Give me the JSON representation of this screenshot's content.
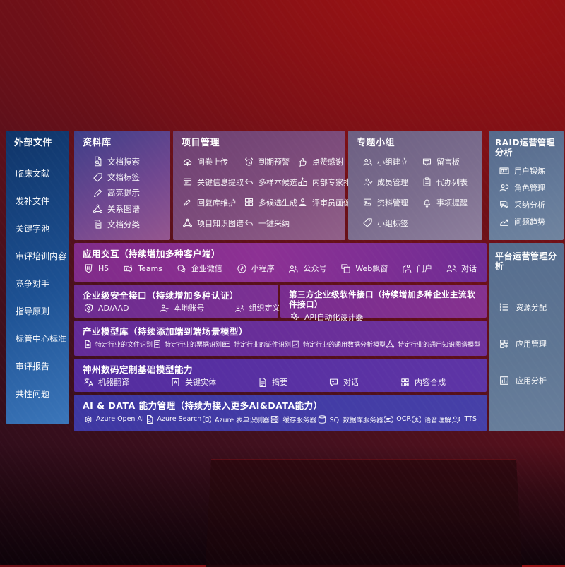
{
  "colors": {
    "background_red": "#7a1015",
    "sidebar_blue": "#1d5193",
    "repository_purple": "#5a4490",
    "project_mauve": "#7c4b7a",
    "group_gray_purple": "#7a6c90",
    "ops_slate": "#5e7494",
    "interaction_magenta": "#862e8f",
    "security_purple": "#712d92",
    "model_violet": "#662e9a",
    "base_violet": "#55309f",
    "aidata_indigo": "#413aa3"
  },
  "sidebar": {
    "title": "外部文件",
    "items": [
      "临床文献",
      "发补文件",
      "关键字池",
      "审评培训内容",
      "竞争对手",
      "指导原则",
      "标管中心标准",
      "审评报告",
      "共性问题"
    ]
  },
  "panels": {
    "repository": {
      "title": "资料库",
      "items": [
        {
          "icon": "doc-search-icon",
          "label": "文档搜索"
        },
        {
          "icon": "tag-icon",
          "label": "文档标签"
        },
        {
          "icon": "highlight-icon",
          "label": "高亮提示"
        },
        {
          "icon": "relation-graph-icon",
          "label": "关系图谱"
        },
        {
          "icon": "doc-classify-icon",
          "label": "文档分类"
        }
      ]
    },
    "project": {
      "title": "项目管理",
      "items": [
        {
          "icon": "cloud-upload-icon",
          "label": "问卷上传"
        },
        {
          "icon": "alarm-icon",
          "label": "到期预警"
        },
        {
          "icon": "thumbs-up-icon",
          "label": "点赞感谢"
        },
        {
          "icon": "key-info-icon",
          "label": "关键信息提取"
        },
        {
          "icon": "multi-sample-icon",
          "label": "多样本候选"
        },
        {
          "icon": "ranking-icon",
          "label": "内部专家排名"
        },
        {
          "icon": "reply-maintain-icon",
          "label": "回复库维护"
        },
        {
          "icon": "multi-generate-icon",
          "label": "多候选生成"
        },
        {
          "icon": "reviewer-portrait-icon",
          "label": "评审员画像"
        },
        {
          "icon": "knowledge-graph-icon",
          "label": "项目知识图谱"
        },
        {
          "icon": "one-click-adopt-icon",
          "label": "一键采纳"
        }
      ]
    },
    "group": {
      "title": "专题小组",
      "items": [
        {
          "icon": "people-icon",
          "label": "小组建立"
        },
        {
          "icon": "bbs-icon",
          "label": "留言板"
        },
        {
          "icon": "member-icon",
          "label": "成员管理"
        },
        {
          "icon": "todo-icon",
          "label": "代办列表"
        },
        {
          "icon": "album-icon",
          "label": "资料管理"
        },
        {
          "icon": "bell-icon",
          "label": "事项提醒"
        },
        {
          "icon": "tag-icon",
          "label": "小组标签"
        }
      ]
    },
    "raid": {
      "title": "RAID运营管理分析",
      "items": [
        {
          "icon": "id-card-icon",
          "label": "用户锻炼"
        },
        {
          "icon": "role-icon",
          "label": "角色管理"
        },
        {
          "icon": "qa-chat-icon",
          "label": "采纳分析"
        },
        {
          "icon": "trend-icon",
          "label": "问题趋势"
        }
      ]
    },
    "platform": {
      "title": "平台运营管理分析",
      "items": [
        {
          "icon": "allocate-list-icon",
          "label": "资源分配"
        },
        {
          "icon": "app-grid-icon",
          "label": "应用管理"
        },
        {
          "icon": "app-analysis-icon",
          "label": "应用分析"
        }
      ]
    }
  },
  "rows": [
    {
      "title": "应用交互（持续增加多种客户端）",
      "items": [
        {
          "icon": "h5-icon",
          "label": "H5"
        },
        {
          "icon": "teams-icon",
          "label": "Teams"
        },
        {
          "icon": "wechat-work-icon",
          "label": "企业微信"
        },
        {
          "icon": "miniprogram-icon",
          "label": "小程序"
        },
        {
          "icon": "official-account-icon",
          "label": "公众号"
        },
        {
          "icon": "web-popup-icon",
          "label": "Web飘窗"
        },
        {
          "icon": "portal-icon",
          "label": "门户"
        },
        {
          "icon": "dialog-icon",
          "label": "对话"
        }
      ]
    },
    {
      "title": "企业级安全接口（持续增加多种认证）",
      "items": [
        {
          "icon": "ad-shield-icon",
          "label": "AD/AAD"
        },
        {
          "icon": "local-account-icon",
          "label": "本地账号"
        },
        {
          "icon": "org-define-icon",
          "label": "组织定义"
        }
      ]
    },
    {
      "title": "第三方企业级软件接口（持续增加多种企业主流软件接口）",
      "items": [
        {
          "icon": "api-designer-icon",
          "label": "API自动化设计器"
        }
      ]
    },
    {
      "title": "产业模型库（持续添加端到端场景模型）",
      "items": [
        {
          "icon": "file-recognize-icon",
          "label": "特定行业的文件识别"
        },
        {
          "icon": "receipt-recognize-icon",
          "label": "特定行业的票据识别"
        },
        {
          "icon": "id-recognize-icon",
          "label": "特定行业的证件识别"
        },
        {
          "icon": "data-analysis-icon",
          "label": "特定行业的通用数据分析模型"
        },
        {
          "icon": "knowledge-graph-icon",
          "label": "特定行业的通用知识图谱模型"
        }
      ]
    },
    {
      "title": "神州数码定制基础模型能力",
      "items": [
        {
          "icon": "translate-icon",
          "label": "机器翻译"
        },
        {
          "icon": "entity-icon",
          "label": "关键实体"
        },
        {
          "icon": "summary-icon",
          "label": "摘要"
        },
        {
          "icon": "chat-icon",
          "label": "对话"
        },
        {
          "icon": "compose-icon",
          "label": "内容合成"
        }
      ]
    },
    {
      "title": "AI & DATA 能力管理（持续为接入更多AI&DATA能力）",
      "items": [
        {
          "icon": "openai-icon",
          "label": "Azure Open AI"
        },
        {
          "icon": "azure-search-icon",
          "label": "Azure Search"
        },
        {
          "icon": "form-recognizer-icon",
          "label": "Azure 表单识别器"
        },
        {
          "icon": "cache-server-icon",
          "label": "缓存服务器"
        },
        {
          "icon": "sql-db-icon",
          "label": "SQL数据库服务器"
        },
        {
          "icon": "ocr-icon",
          "label": "OCR"
        },
        {
          "icon": "speech-icon",
          "label": "语音理解"
        },
        {
          "icon": "tts-icon",
          "label": "TTS"
        }
      ]
    }
  ]
}
